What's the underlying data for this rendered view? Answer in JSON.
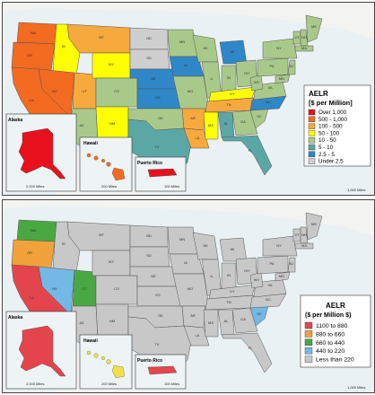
{
  "colors": {
    "red": "#e8101c",
    "orange_red": "#f36a21",
    "orange": "#f8a93e",
    "yellow": "#ffff00",
    "light_green": "#a9c98a",
    "teal": "#5ba7a6",
    "blue": "#2f87c8",
    "gray": "#cfcfcf",
    "b_red": "#e4454d",
    "b_orange": "#f1a23c",
    "b_green": "#4aa843",
    "b_lightblue": "#74b8e6",
    "b_gray": "#c8c8c8",
    "sea": "#eaf1f4",
    "canada": "#f3f3f1"
  },
  "top_map": {
    "legend": {
      "title_line1": "AELR",
      "title_line2": "[$ per Million]",
      "items": [
        {
          "label": "Over 1,000",
          "color": "#e8101c"
        },
        {
          "label": "500 - 1,000",
          "color": "#f36a21"
        },
        {
          "label": "100 - 500",
          "color": "#f8a93e"
        },
        {
          "label": "50 - 100",
          "color": "#ffff00"
        },
        {
          "label": "10 - 50",
          "color": "#a9c98a"
        },
        {
          "label": "5 - 10",
          "color": "#5ba7a6"
        },
        {
          "label": "2.5 - 5",
          "color": "#2f87c8"
        },
        {
          "label": "Under 2.5",
          "color": "#cfcfcf"
        }
      ]
    },
    "insets": {
      "alaska": "Alaska",
      "hawaii": "Hawaii",
      "puerto_rico": "Puerto Rico",
      "alaska_scale": "2,000 Miles",
      "hawaii_scale": "200 Miles",
      "pr_scale": "100 Miles"
    },
    "scale": "1,000 Miles"
  },
  "bottom_map": {
    "legend": {
      "title_line1": "AELR",
      "title_line2": "($ per Million $)",
      "items": [
        {
          "label": "1100 to 880",
          "color": "#e4454d"
        },
        {
          "label": "880 to 660",
          "color": "#f1a23c"
        },
        {
          "label": "660 to 440",
          "color": "#4aa843"
        },
        {
          "label": "440 to 220",
          "color": "#74b8e6"
        },
        {
          "label": "Less than 220",
          "color": "#c8c8c8"
        }
      ]
    },
    "insets": {
      "alaska": "Alaska",
      "hawaii": "Hawaii",
      "puerto_rico": "Puerto Rico",
      "alaska_scale": "2,000 Miles",
      "hawaii_scale": "200 Miles",
      "pr_scale": "100 Miles"
    },
    "scale": "1,000 Miles"
  },
  "states": [
    "WA",
    "OR",
    "CA",
    "ID",
    "NV",
    "UT",
    "AZ",
    "MT",
    "WY",
    "CO",
    "NM",
    "ND",
    "SD",
    "NE",
    "KS",
    "OK",
    "TX",
    "MN",
    "IA",
    "MO",
    "AR",
    "LA",
    "WI",
    "IL",
    "MI",
    "IN",
    "OH",
    "KY",
    "TN",
    "MS",
    "AL",
    "GA",
    "FL",
    "SC",
    "NC",
    "VA",
    "WV",
    "PA",
    "NY",
    "VT",
    "NH",
    "ME",
    "MA",
    "NJ",
    "MD"
  ],
  "top_state_colors": {
    "WA": "#f36a21",
    "OR": "#f36a21",
    "CA": "#f36a21",
    "ID": "#ffff00",
    "NV": "#f36a21",
    "UT": "#f8a93e",
    "AZ": "#a9c98a",
    "MT": "#f8a93e",
    "WY": "#ffff00",
    "CO": "#a9c98a",
    "NM": "#ffff00",
    "ND": "#cfcfcf",
    "SD": "#cfcfcf",
    "NE": "#2f87c8",
    "KS": "#2f87c8",
    "OK": "#a9c98a",
    "TX": "#5ba7a6",
    "MN": "#a9c98a",
    "IA": "#2f87c8",
    "MO": "#a9c98a",
    "AR": "#f8a93e",
    "LA": "#f8a93e",
    "WI": "#a9c98a",
    "IL": "#a9c98a",
    "MI": "#2f87c8",
    "IN": "#a9c98a",
    "OH": "#a9c98a",
    "KY": "#ffff00",
    "TN": "#f8a93e",
    "MS": "#ffff00",
    "AL": "#5ba7a6",
    "GA": "#a9c98a",
    "FL": "#5ba7a6",
    "SC": "#a9c98a",
    "NC": "#2f87c8",
    "VA": "#a9c98a",
    "WV": "#a9c98a",
    "PA": "#a9c98a",
    "NY": "#a9c98a",
    "VT": "#a9c98a",
    "NH": "#a9c98a",
    "ME": "#a9c98a",
    "MA": "#a9c98a",
    "NJ": "#a9c98a",
    "MD": "#a9c98a"
  },
  "bottom_state_colors": {
    "WA": "#4aa843",
    "OR": "#f1a23c",
    "CA": "#e4454d",
    "ID": "#c8c8c8",
    "NV": "#74b8e6",
    "UT": "#4aa843",
    "AZ": "#c8c8c8",
    "SC": "#74b8e6"
  }
}
